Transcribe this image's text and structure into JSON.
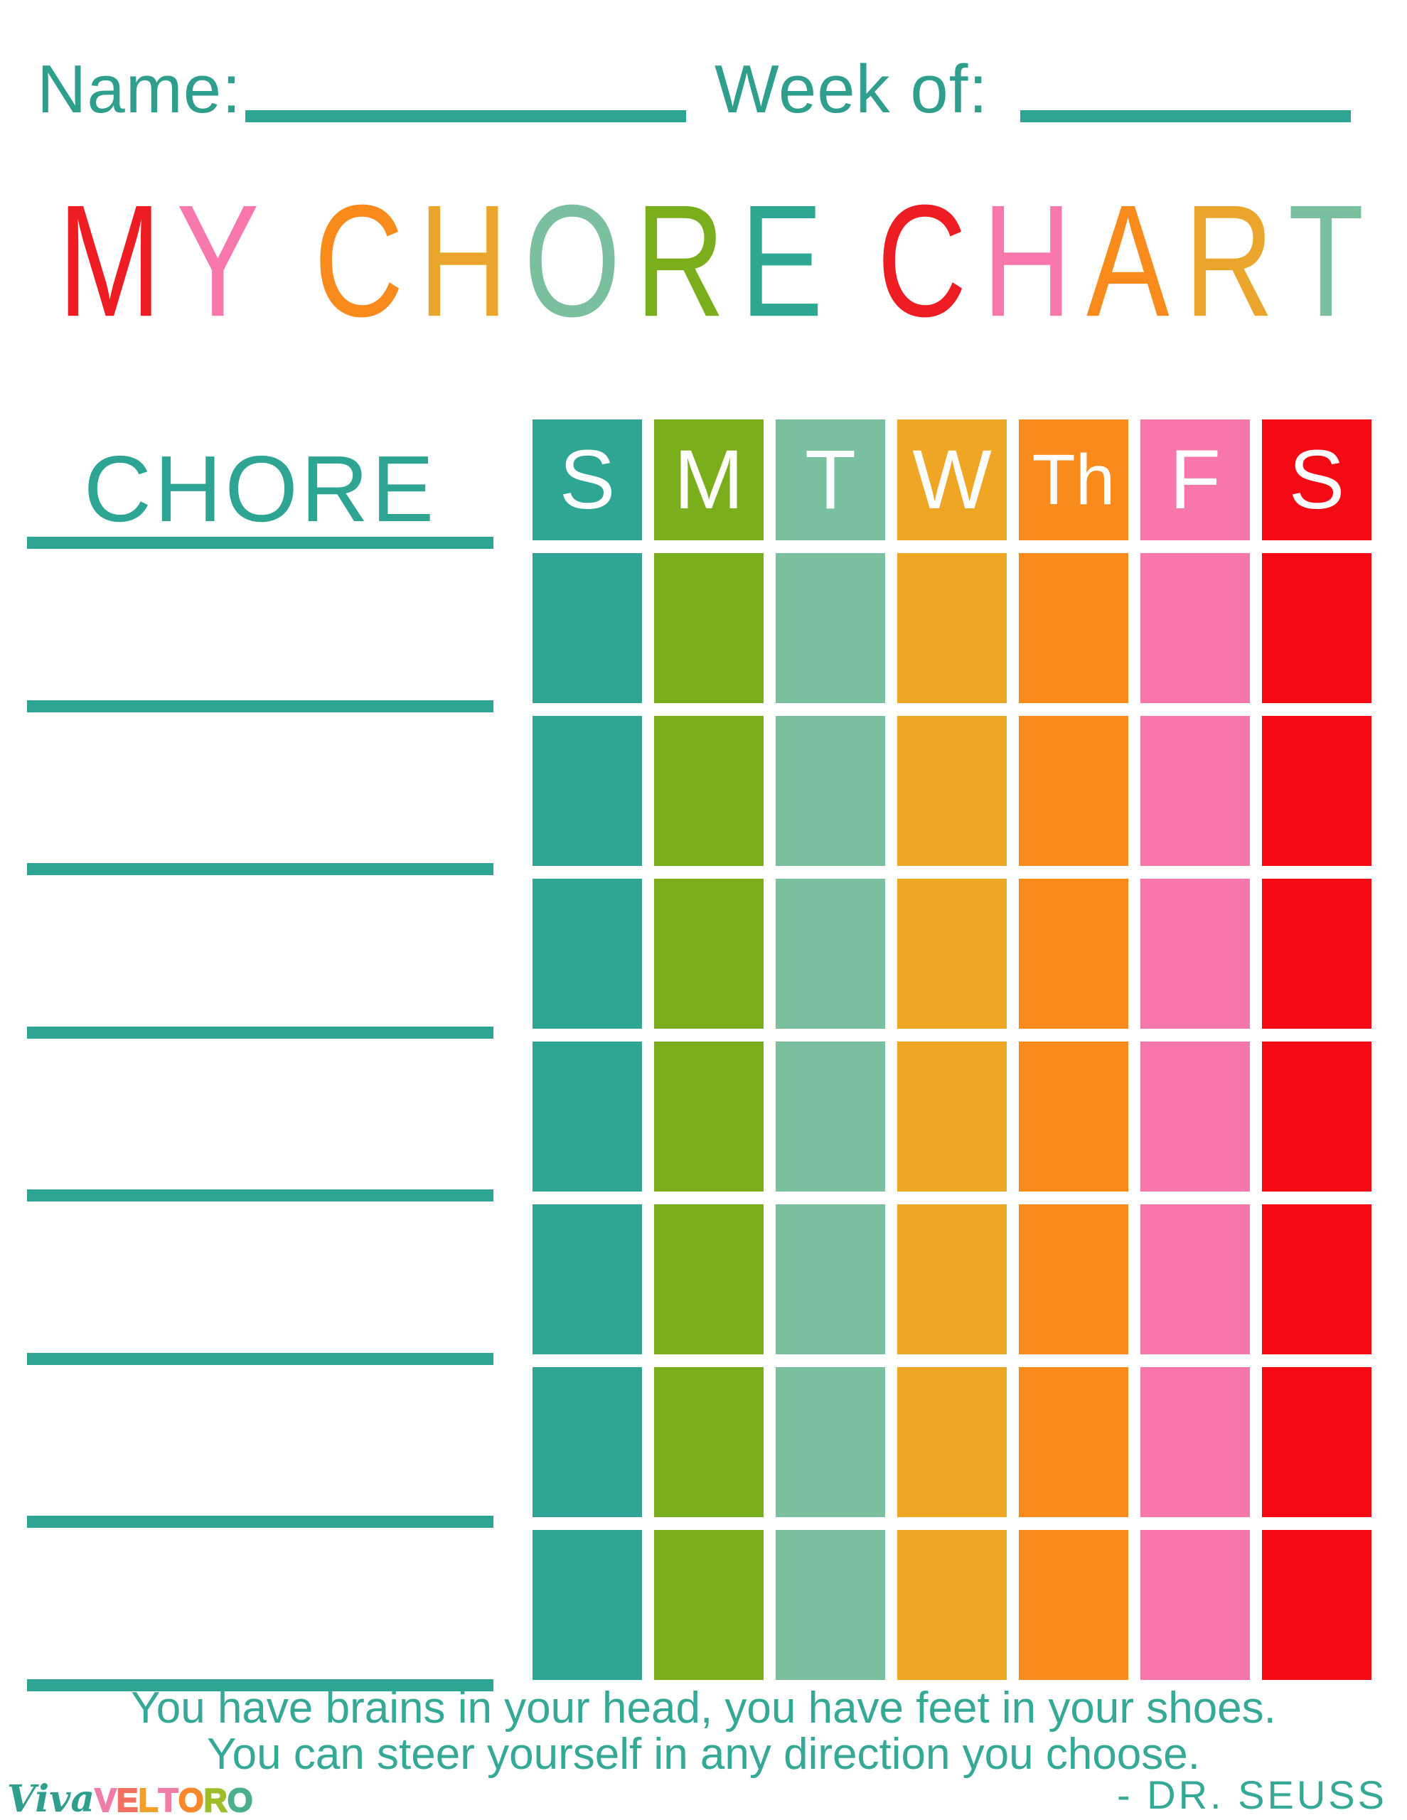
{
  "top": {
    "name_label": "Name:",
    "week_label": "Week of:"
  },
  "title": {
    "text": "MY CHORE CHART",
    "letters": [
      {
        "ch": "M",
        "color": "#EE1C23"
      },
      {
        "ch": "Y",
        "color": "#F878AB"
      },
      {
        "ch": " "
      },
      {
        "ch": "C",
        "color": "#F98A1C"
      },
      {
        "ch": "H",
        "color": "#EAA62C"
      },
      {
        "ch": "O",
        "color": "#7ABF9E"
      },
      {
        "ch": "R",
        "color": "#7BAE1D"
      },
      {
        "ch": "E",
        "color": "#2FA893"
      },
      {
        "ch": " "
      },
      {
        "ch": "C",
        "color": "#EE1C23"
      },
      {
        "ch": "H",
        "color": "#F878AB"
      },
      {
        "ch": "A",
        "color": "#F98A1C"
      },
      {
        "ch": "R",
        "color": "#EAA62C"
      },
      {
        "ch": "T",
        "color": "#7ABF9E"
      }
    ]
  },
  "table": {
    "chore_header": "CHORE",
    "days": [
      {
        "label": "S",
        "color": "#2FA693"
      },
      {
        "label": "M",
        "color": "#7BAE1D"
      },
      {
        "label": "T",
        "color": "#7ABF9E"
      },
      {
        "label": "W",
        "color": "#EFA625"
      },
      {
        "label": "Th",
        "color": "#F98A1C"
      },
      {
        "label": "F",
        "color": "#F877AB"
      },
      {
        "label": "S",
        "color": "#F40A14"
      }
    ],
    "data_rows": 7,
    "write_lines": 8
  },
  "quote": {
    "line1": "You have brains in your head, you have feet in your shoes.",
    "line2": "You can steer yourself in any direction you choose.",
    "attribution": "- DR. SEUSS"
  },
  "logo": {
    "script_text": "Viva",
    "outline_letters": [
      {
        "ch": "V",
        "color": "#F07CA8"
      },
      {
        "ch": "E",
        "color": "#F2705F"
      },
      {
        "ch": "L",
        "color": "#F0A02C"
      },
      {
        "ch": "T",
        "color": "#F07CA8"
      },
      {
        "ch": "O",
        "color": "#F4882A"
      },
      {
        "ch": "R",
        "color": "#9DBE2B"
      },
      {
        "ch": "O",
        "color": "#4CAE8E"
      }
    ]
  },
  "colors": {
    "teal_text": "#2F9E8D",
    "teal_bar": "#2EA492",
    "quote_teal": "#35A896"
  }
}
